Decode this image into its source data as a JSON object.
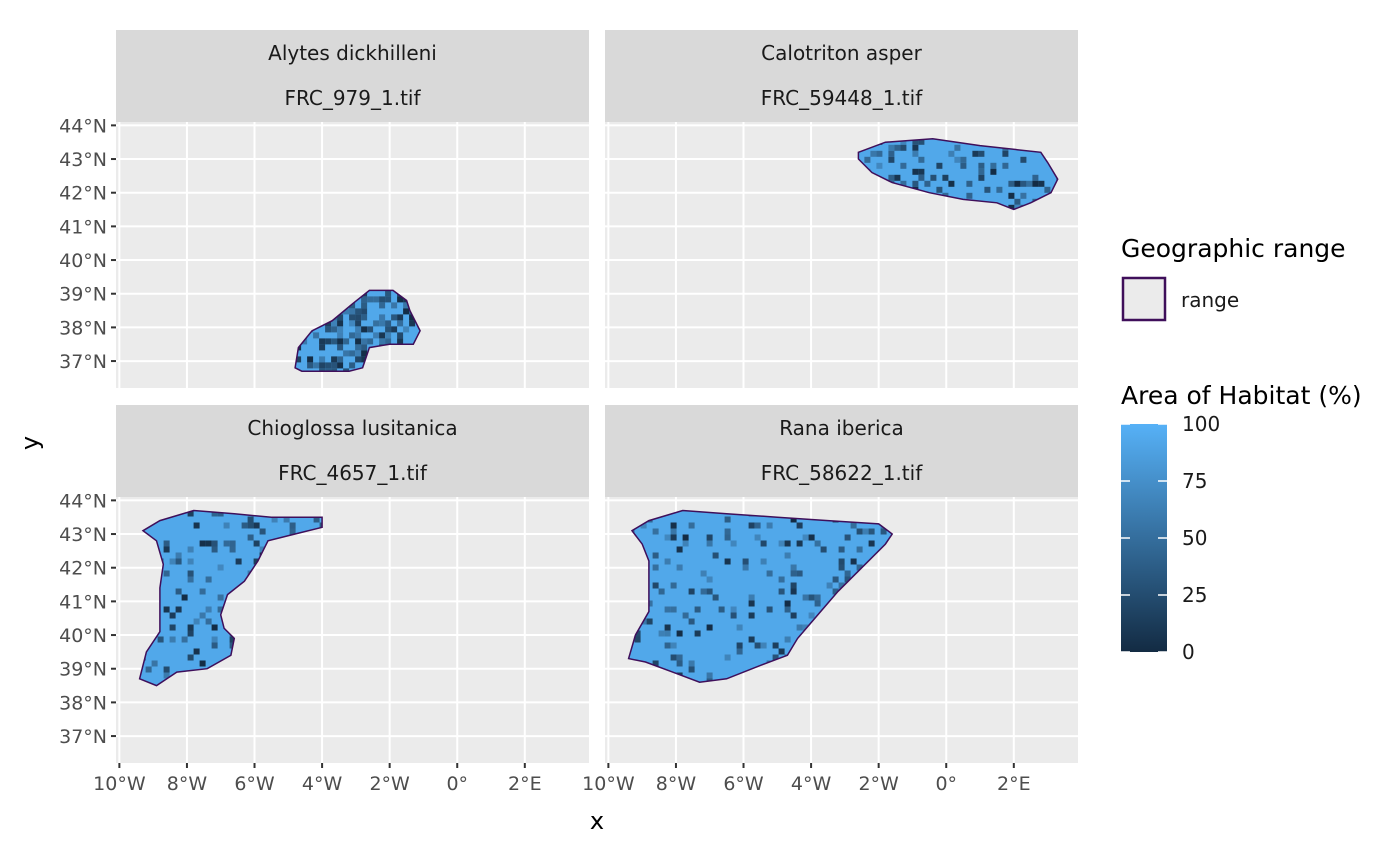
{
  "chart_data": {
    "type": "heatmap",
    "facets": [
      {
        "species": "Alytes dickhilleni",
        "file": "FRC_979_1.tif",
        "range_outline": [
          [
            -4.8,
            36.8
          ],
          [
            -4.6,
            36.7
          ],
          [
            -4.0,
            36.7
          ],
          [
            -3.2,
            36.7
          ],
          [
            -2.8,
            36.8
          ],
          [
            -2.6,
            37.4
          ],
          [
            -2.0,
            37.5
          ],
          [
            -1.3,
            37.5
          ],
          [
            -1.1,
            37.9
          ],
          [
            -1.4,
            38.5
          ],
          [
            -1.5,
            38.8
          ],
          [
            -1.9,
            39.1
          ],
          [
            -2.6,
            39.1
          ],
          [
            -3.1,
            38.7
          ],
          [
            -3.7,
            38.2
          ],
          [
            -4.3,
            37.9
          ],
          [
            -4.7,
            37.4
          ]
        ],
        "dark_share": 0.55
      },
      {
        "species": "Calotriton asper",
        "file": "FRC_59448_1.tif",
        "range_outline": [
          [
            -2.6,
            43.2
          ],
          [
            -1.8,
            43.5
          ],
          [
            -0.4,
            43.6
          ],
          [
            1.0,
            43.4
          ],
          [
            2.8,
            43.2
          ],
          [
            3.0,
            42.9
          ],
          [
            3.3,
            42.4
          ],
          [
            3.1,
            42.0
          ],
          [
            2.5,
            41.7
          ],
          [
            2.0,
            41.5
          ],
          [
            1.5,
            41.7
          ],
          [
            0.5,
            41.8
          ],
          [
            -0.5,
            42.0
          ],
          [
            -1.6,
            42.3
          ],
          [
            -2.2,
            42.6
          ],
          [
            -2.6,
            43.0
          ]
        ],
        "dark_share": 0.25
      },
      {
        "species": "Chioglossa lusitanica",
        "file": "FRC_4657_1.tif",
        "range_outline": [
          [
            -9.3,
            43.1
          ],
          [
            -8.8,
            43.4
          ],
          [
            -7.8,
            43.7
          ],
          [
            -6.6,
            43.6
          ],
          [
            -5.5,
            43.5
          ],
          [
            -4.0,
            43.5
          ],
          [
            -4.0,
            43.2
          ],
          [
            -4.8,
            43.0
          ],
          [
            -5.6,
            42.8
          ],
          [
            -5.9,
            42.2
          ],
          [
            -6.3,
            41.6
          ],
          [
            -6.8,
            41.2
          ],
          [
            -7.0,
            40.6
          ],
          [
            -6.9,
            40.2
          ],
          [
            -6.6,
            39.9
          ],
          [
            -6.7,
            39.4
          ],
          [
            -7.4,
            39.0
          ],
          [
            -8.3,
            38.9
          ],
          [
            -8.9,
            38.5
          ],
          [
            -9.4,
            38.7
          ],
          [
            -9.2,
            39.5
          ],
          [
            -8.8,
            40.1
          ],
          [
            -8.8,
            40.8
          ],
          [
            -8.8,
            41.4
          ],
          [
            -8.7,
            42.1
          ],
          [
            -8.9,
            42.8
          ]
        ],
        "dark_share": 0.15
      },
      {
        "species": "Rana iberica",
        "file": "FRC_58622_1.tif",
        "range_outline": [
          [
            -9.3,
            43.1
          ],
          [
            -8.8,
            43.4
          ],
          [
            -7.8,
            43.7
          ],
          [
            -6.5,
            43.6
          ],
          [
            -5.0,
            43.5
          ],
          [
            -3.5,
            43.4
          ],
          [
            -2.0,
            43.3
          ],
          [
            -1.6,
            43.0
          ],
          [
            -1.8,
            42.7
          ],
          [
            -2.5,
            42.0
          ],
          [
            -3.2,
            41.3
          ],
          [
            -3.8,
            40.6
          ],
          [
            -4.4,
            39.9
          ],
          [
            -4.7,
            39.4
          ],
          [
            -5.5,
            39.1
          ],
          [
            -6.5,
            38.7
          ],
          [
            -7.3,
            38.6
          ],
          [
            -8.1,
            38.9
          ],
          [
            -8.9,
            39.2
          ],
          [
            -9.4,
            39.3
          ],
          [
            -9.2,
            40.0
          ],
          [
            -8.8,
            40.7
          ],
          [
            -8.8,
            41.5
          ],
          [
            -8.8,
            42.2
          ],
          [
            -9.0,
            42.7
          ]
        ],
        "dark_share": 0.15
      }
    ],
    "x_ticks": [
      "10°W",
      "8°W",
      "6°W",
      "4°W",
      "2°W",
      "0°",
      "2°E"
    ],
    "x_tick_values": [
      -10,
      -8,
      -6,
      -4,
      -2,
      0,
      2
    ],
    "y_ticks": [
      "37°N",
      "38°N",
      "39°N",
      "40°N",
      "41°N",
      "42°N",
      "43°N",
      "44°N"
    ],
    "y_tick_values": [
      37,
      38,
      39,
      40,
      41,
      42,
      43,
      44
    ],
    "xlim": [
      -10.1,
      3.9
    ],
    "ylim": [
      36.2,
      44.1
    ],
    "xlabel": "x",
    "ylabel": "y",
    "legend_position": "right",
    "fill_scale": {
      "title": "Area of Habitat (%)",
      "breaks": [
        "100",
        "75",
        "50",
        "25",
        "0"
      ],
      "low_color": "#132B43",
      "high_color": "#56B1F7"
    },
    "outline_legend": {
      "title": "Geographic range",
      "label": "range",
      "color": "#3F0F5A"
    },
    "grid": true,
    "panel_background": "#EBEBEB",
    "strip_background": "#D9D9D9"
  }
}
